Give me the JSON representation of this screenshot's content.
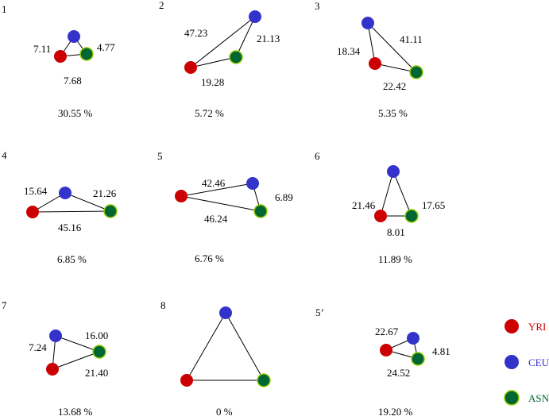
{
  "colors": {
    "YRI": "#cc0000",
    "CEU": "#3333cc",
    "ASN_fill": "#006633",
    "ASN_stroke": "#99cc00",
    "edge": "#000000"
  },
  "legend": [
    {
      "id": "YRI",
      "label": "YRI",
      "color": "#cc0000"
    },
    {
      "id": "CEU",
      "label": "CEU",
      "color": "#3333cc"
    },
    {
      "id": "ASN",
      "label": "ASN",
      "color": "#006633"
    }
  ],
  "panels": [
    {
      "id": "1",
      "edges": {
        "YRI_CEU": "7.11",
        "CEU_ASN": "4.77",
        "YRI_ASN": "7.68"
      },
      "percentage": "30.55 %"
    },
    {
      "id": "2",
      "edges": {
        "YRI_CEU": "47.23",
        "CEU_ASN": "21.13",
        "YRI_ASN": "19.28"
      },
      "percentage": "5.72 %"
    },
    {
      "id": "3",
      "edges": {
        "YRI_CEU": "18.34",
        "CEU_ASN": "41.11",
        "YRI_ASN": "22.42"
      },
      "percentage": "5.35 %"
    },
    {
      "id": "4",
      "edges": {
        "YRI_CEU": "15.64",
        "CEU_ASN": "21.26",
        "YRI_ASN": "45.16"
      },
      "percentage": "6.85 %"
    },
    {
      "id": "5",
      "edges": {
        "YRI_CEU": "42.46",
        "CEU_ASN": "6.89",
        "YRI_ASN": "46.24"
      },
      "percentage": "6.76 %"
    },
    {
      "id": "6",
      "edges": {
        "YRI_CEU": "21.46",
        "CEU_ASN": "17.65",
        "YRI_ASN": "8.01"
      },
      "percentage": "11.89 %"
    },
    {
      "id": "7",
      "edges": {
        "YRI_CEU": "7.24",
        "CEU_ASN": "16.00",
        "YRI_ASN": "21.40"
      },
      "percentage": "13.68 %"
    },
    {
      "id": "8",
      "edges": {
        "YRI_CEU": "",
        "CEU_ASN": "",
        "YRI_ASN": ""
      },
      "percentage": "0 %"
    },
    {
      "id": "5’",
      "edges": {
        "YRI_CEU": "22.67",
        "CEU_ASN": "4.81",
        "YRI_ASN": "24.52"
      },
      "percentage": "19.20 %"
    }
  ]
}
